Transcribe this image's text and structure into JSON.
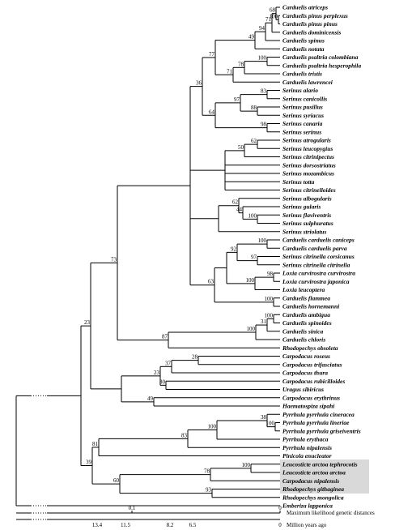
{
  "tree": {
    "children": [
      {
        "children": [
          {
            "support": 23,
            "children": [
              {
                "support": 73,
                "children": [
                  {
                    "children": [
                      {
                        "support": 36,
                        "children": [
                          {
                            "support": 77,
                            "children": [
                              {
                                "support": 49,
                                "children": [
                                  {
                                    "support": 94,
                                    "children": [
                                      {
                                        "support": 71,
                                        "children": [
                                          {
                                            "support": 68,
                                            "children": [
                                              {
                                                "name": "Carduelis atriceps"
                                              },
                                              {
                                                "support": 100,
                                                "children": [
                                                  {
                                                    "name": "Carduelis pinus perplexus"
                                                  },
                                                  {
                                                    "name": "Carduelis pinus pinus"
                                                  }
                                                ]
                                              }
                                            ]
                                          },
                                          {
                                            "name": "Carduelis dominicensis"
                                          }
                                        ]
                                      },
                                      {
                                        "name": "Carduelis spinus"
                                      }
                                    ]
                                  },
                                  {
                                    "name": "Carduelis notata"
                                  }
                                ]
                              },
                              {
                                "support": 71,
                                "children": [
                                  {
                                    "support": 78,
                                    "children": [
                                      {
                                        "support": 100,
                                        "children": [
                                          {
                                            "name": "Carduelis psaltria colombiana"
                                          },
                                          {
                                            "name": "Carduelis psaltria hesperophila"
                                          }
                                        ]
                                      },
                                      {
                                        "name": "Carduelis tristis"
                                      }
                                    ]
                                  },
                                  {
                                    "name": "Carduelis lawrencei"
                                  }
                                ]
                              }
                            ]
                          },
                          {
                            "support": 64,
                            "children": [
                              {
                                "support": 97,
                                "children": [
                                  {
                                    "support": 83,
                                    "children": [
                                      {
                                        "name": "Serinus alario"
                                      },
                                      {
                                        "name": "Serinus canicollis"
                                      }
                                    ]
                                  },
                                  {
                                    "support": 88,
                                    "children": [
                                      {
                                        "name": "Serinus pusillus"
                                      },
                                      {
                                        "name": "Serinus syriacus"
                                      }
                                    ]
                                  }
                                ]
                              },
                              {
                                "support": 98,
                                "children": [
                                  {
                                    "name": "Serinus canaria"
                                  },
                                  {
                                    "name": "Serinus serinus"
                                  }
                                ]
                              }
                            ]
                          }
                        ]
                      },
                      {
                        "children": [
                          {
                            "support": 50,
                            "children": [
                              {
                                "support": 62,
                                "children": [
                                  {
                                    "name": "Serinus atrogularis"
                                  },
                                  {
                                    "name": "Serinus leucopygius"
                                  }
                                ]
                              },
                              {
                                "name": "Serinus citrinipectus"
                              }
                            ]
                          },
                          {
                            "name": "Serinus dorsostriatus"
                          },
                          {
                            "name": "Serinus mozambicus"
                          },
                          {
                            "name": "Serinus totta"
                          },
                          {
                            "name": "Serinus citrinelloides"
                          }
                        ]
                      },
                      {
                        "children": [
                          {
                            "support": 62,
                            "children": [
                              {
                                "name": "Serinus albogularis"
                              },
                              {
                                "support": 44,
                                "children": [
                                  {
                                    "name": "Serinus gularis"
                                  },
                                  {
                                    "support": 100,
                                    "children": [
                                      {
                                        "name": "Serinus flaviventris"
                                      },
                                      {
                                        "name": "Serinus sulphuratus"
                                      }
                                    ]
                                  }
                                ]
                              }
                            ]
                          },
                          {
                            "name": "Serinus striolatus"
                          }
                        ]
                      },
                      {
                        "support": 63,
                        "children": [
                          {
                            "children": [
                              {
                                "support": 92,
                                "children": [
                                  {
                                    "support": 100,
                                    "children": [
                                      {
                                        "name": "Carduelis carduelis caniceps"
                                      },
                                      {
                                        "name": "Carduelis carduelis parva"
                                      }
                                    ]
                                  },
                                  {
                                    "support": 97,
                                    "children": [
                                      {
                                        "name": "Serinus citrinella corsicanus"
                                      },
                                      {
                                        "name": "Serinus citrinella citrinella"
                                      }
                                    ]
                                  }
                                ]
                              },
                              {
                                "support": 100,
                                "children": [
                                  {
                                    "support": 98,
                                    "children": [
                                      {
                                        "name": "Loxia curvirostra curvirostra"
                                      },
                                      {
                                        "name": "Loxia curvirostra japonica"
                                      }
                                    ]
                                  },
                                  {
                                    "name": "Loxia leucoptera"
                                  }
                                ]
                              }
                            ]
                          },
                          {
                            "support": 100,
                            "children": [
                              {
                                "name": "Carduelis flammea"
                              },
                              {
                                "name": "Carduelis hornemanni"
                              }
                            ]
                          }
                        ]
                      }
                    ]
                  },
                  {
                    "support": 87,
                    "children": [
                      {
                        "support": 100,
                        "children": [
                          {
                            "support": 31,
                            "children": [
                              {
                                "support": 100,
                                "children": [
                                  {
                                    "name": "Carduelis ambigua"
                                  },
                                  {
                                    "name": "Carduelis spinoides"
                                  }
                                ]
                              },
                              {
                                "name": "Carduelis sinica"
                              }
                            ]
                          },
                          {
                            "name": "Carduelis chloris"
                          }
                        ]
                      },
                      {
                        "name": "Rhodopechys obsoleta"
                      }
                    ]
                  }
                ]
              },
              {
                "children": [
                  {
                    "support": 23,
                    "children": [
                      {
                        "support": 37,
                        "children": [
                          {
                            "support": 28,
                            "children": [
                              {
                                "name": "Carpodacus roseus"
                              },
                              {
                                "name": "Carpodacus trifasciatus"
                              }
                            ]
                          },
                          {
                            "name": "Carpodacus thura"
                          }
                        ]
                      },
                      {
                        "support": 30,
                        "children": [
                          {
                            "name": "Carpodacus rubicilloides"
                          },
                          {
                            "name": "Uragus sibiricus"
                          }
                        ]
                      }
                    ]
                  },
                  {
                    "support": 49,
                    "children": [
                      {
                        "name": "Carpodacus erythrinus"
                      },
                      {
                        "name": "Haematospiza sipahi"
                      }
                    ]
                  }
                ]
              }
            ]
          },
          {
            "support": 39,
            "children": [
              {
                "support": 81,
                "children": [
                  {
                    "support": 83,
                    "children": [
                      {
                        "support": 100,
                        "children": [
                          {
                            "support": 38,
                            "children": [
                              {
                                "name": "Pyrrhula pyrrhula cineracea"
                              },
                              {
                                "support": 100,
                                "children": [
                                  {
                                    "name": "Pyrrhula pyrrhula lineriae"
                                  },
                                  {
                                    "name": "Pyrrhula pyrrhula griseiventris"
                                  }
                                ]
                              }
                            ]
                          },
                          {
                            "name": "Pyrrhula erythaca"
                          }
                        ]
                      },
                      {
                        "name": "Pyrrhula nipalensis"
                      }
                    ]
                  },
                  {
                    "name": "Pinicola enucleator"
                  }
                ]
              },
              {
                "support": 60,
                "children": [
                  {
                    "support": 78,
                    "children": [
                      {
                        "support": 100,
                        "children": [
                          {
                            "name": "Leucosticte arctoa tephrocotis"
                          },
                          {
                            "name": "Leucosticte arctoa arctoa"
                          }
                        ]
                      },
                      {
                        "name": "Carpodacus nipalensis"
                      }
                    ]
                  },
                  {
                    "support": 93,
                    "children": [
                      {
                        "name": "Rhodopechys githaginea"
                      },
                      {
                        "name": "Rhodopechys mongolica"
                      }
                    ]
                  }
                ]
              }
            ]
          }
        ]
      },
      {
        "name": "Emberiza lapponica"
      }
    ]
  },
  "scale": {
    "distance": {
      "labels": [
        "0.1",
        "0"
      ],
      "caption": "Maximum likelihood genetic distances"
    },
    "time": {
      "labels": [
        "13.4",
        "11.5",
        "8.2",
        "6.5",
        "0"
      ],
      "caption": "Million years ago"
    }
  }
}
